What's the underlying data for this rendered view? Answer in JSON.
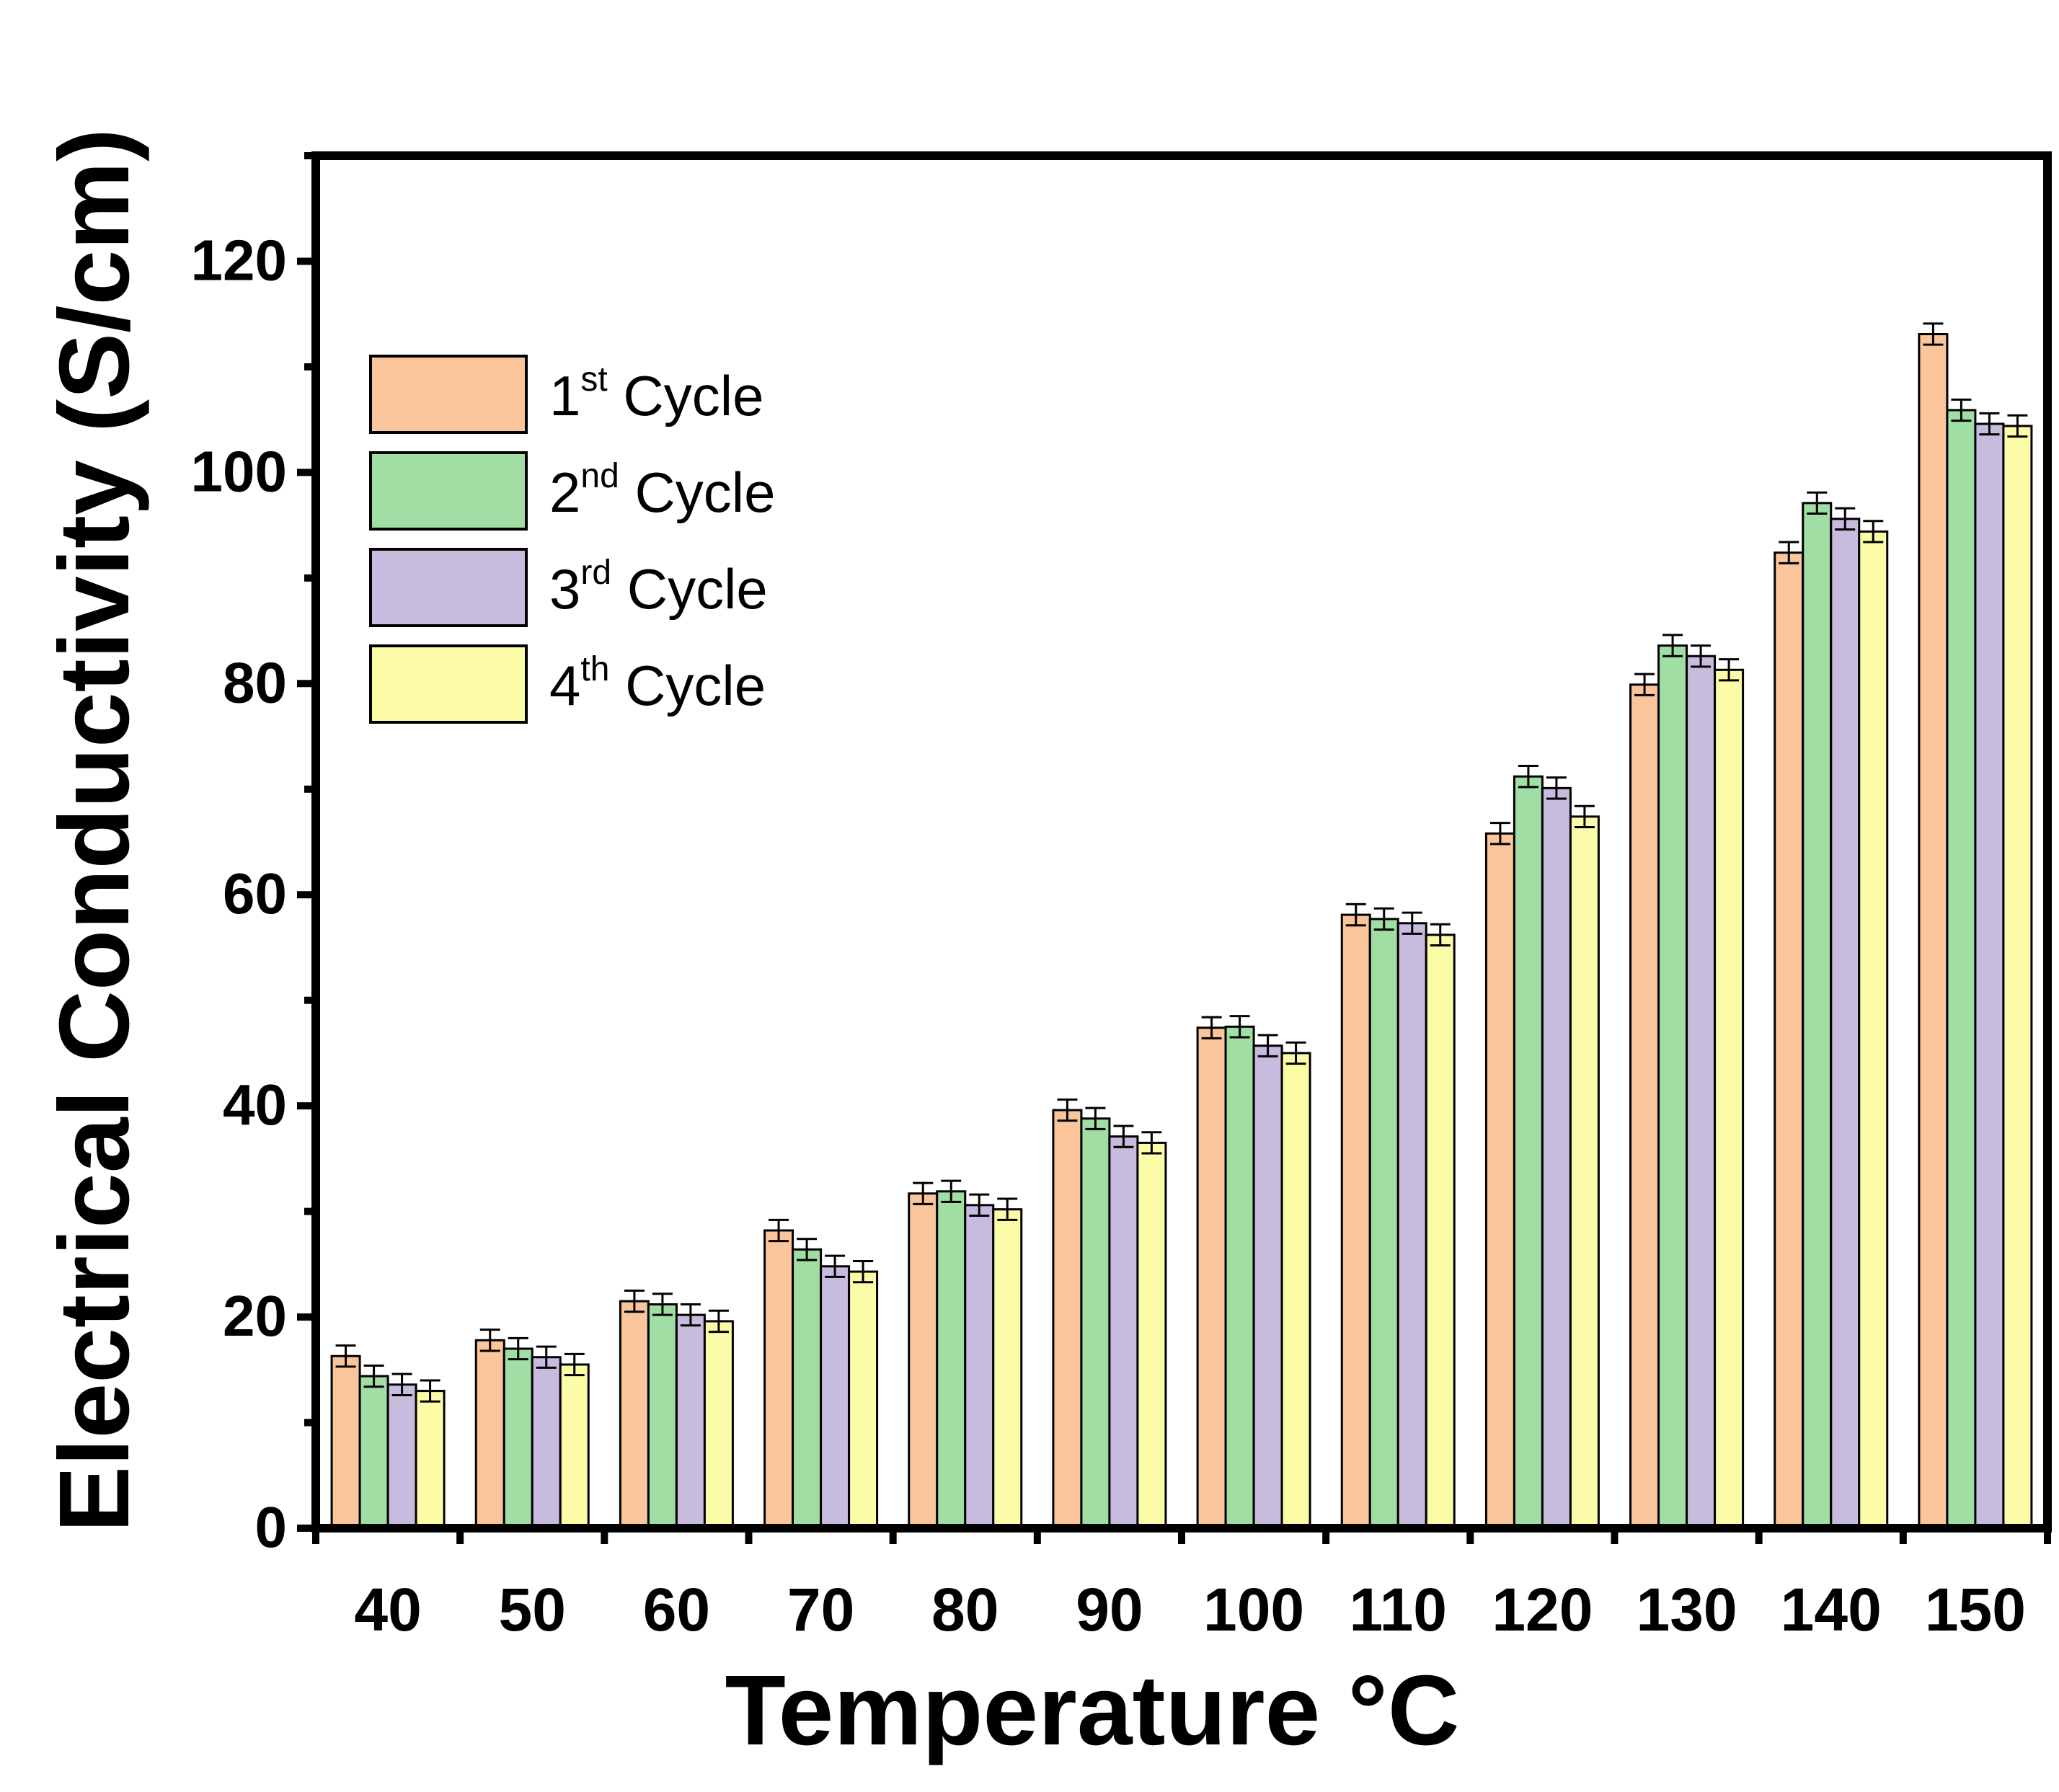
{
  "chart_data": {
    "type": "bar",
    "title": "",
    "xlabel": "Temperature °C",
    "ylabel": "Electrical Conductivity (S/cm)",
    "ylim": [
      0,
      130
    ],
    "yticks": [
      0,
      20,
      40,
      60,
      80,
      100,
      120
    ],
    "ytick_labels": [
      "0",
      "20",
      "40",
      "60",
      "80",
      "100",
      "120"
    ],
    "grid": false,
    "legend_position": "top-left",
    "categories": [
      "40",
      "50",
      "60",
      "70",
      "80",
      "90",
      "100",
      "110",
      "120",
      "130",
      "140",
      "150"
    ],
    "series": [
      {
        "name": "1st Cycle",
        "legend_number": "1",
        "legend_sup": "st",
        "legend_text": " Cycle",
        "color": "#FBC59C",
        "values": [
          16.3,
          17.8,
          21.5,
          28.2,
          31.7,
          39.6,
          47.4,
          58.1,
          65.8,
          79.9,
          92.4,
          113.1
        ],
        "errors": [
          1.0,
          1.0,
          1.0,
          1.0,
          1.0,
          1.0,
          1.0,
          1.0,
          1.0,
          1.0,
          1.0,
          1.0
        ]
      },
      {
        "name": "2nd Cycle",
        "legend_number": "2",
        "legend_sup": "nd",
        "legend_text": " Cycle",
        "color": "#A1DEA4",
        "values": [
          14.4,
          17.0,
          21.2,
          26.4,
          31.9,
          38.8,
          47.5,
          57.7,
          71.2,
          83.6,
          97.1,
          105.9
        ],
        "errors": [
          1.0,
          1.0,
          1.0,
          1.0,
          1.0,
          1.0,
          1.0,
          1.0,
          1.0,
          1.0,
          1.0,
          1.0
        ]
      },
      {
        "name": "3rd Cycle",
        "legend_number": "3",
        "legend_sup": "rd",
        "legend_text": " Cycle",
        "color": "#C7BBDE",
        "values": [
          13.6,
          16.2,
          20.2,
          24.8,
          30.6,
          37.1,
          45.7,
          57.3,
          70.1,
          82.6,
          95.6,
          104.6
        ],
        "errors": [
          1.0,
          1.0,
          1.0,
          1.0,
          1.0,
          1.0,
          1.0,
          1.0,
          1.0,
          1.0,
          1.0,
          1.0
        ]
      },
      {
        "name": "4th Cycle",
        "legend_number": "4",
        "legend_sup": "th",
        "legend_text": " Cycle",
        "color": "#FCFCA8",
        "values": [
          13.0,
          15.5,
          19.6,
          24.3,
          30.2,
          36.5,
          45.0,
          56.2,
          67.4,
          81.3,
          94.4,
          104.4
        ],
        "errors": [
          1.0,
          1.0,
          1.0,
          1.0,
          1.0,
          1.0,
          1.0,
          1.0,
          1.0,
          1.0,
          1.0,
          1.0
        ]
      }
    ]
  }
}
